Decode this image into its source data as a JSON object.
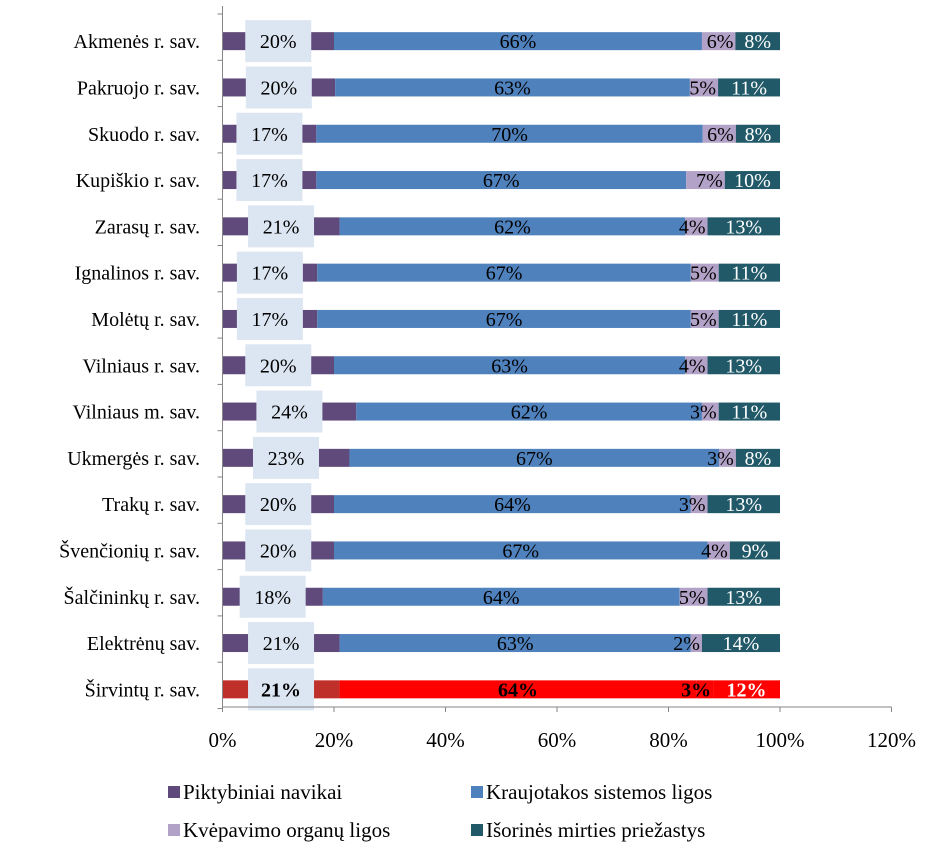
{
  "chart_data": {
    "type": "bar",
    "stacked": true,
    "orientation": "horizontal",
    "title": "",
    "xlabel": "",
    "ylabel": "",
    "xlim": [
      0,
      120
    ],
    "x_ticks": [
      "0%",
      "20%",
      "40%",
      "60%",
      "80%",
      "100%",
      "120%"
    ],
    "x_tick_values": [
      0,
      20,
      40,
      60,
      80,
      100,
      120
    ],
    "grid": false,
    "legend_position": "bottom",
    "categories": [
      "Akmenės r. sav.",
      "Pakruojo r. sav.",
      "Skuodo r. sav.",
      "Kupiškio r. sav.",
      "Zarasų r. sav.",
      "Ignalinos r. sav.",
      "Molėtų r. sav.",
      "Vilniaus r. sav.",
      "Vilniaus m. sav.",
      "Ukmergės r. sav.",
      "Trakų r. sav.",
      "Švenčionių r. sav.",
      "Šalčininkų r. sav.",
      "Elektrėnų sav.",
      "Širvintų r. sav."
    ],
    "series": [
      {
        "name": "Piktybiniai navikai",
        "color": "#604a7b",
        "labels": [
          "20%",
          "20%",
          "17%",
          "17%",
          "21%",
          "17%",
          "17%",
          "20%",
          "24%",
          "23%",
          "20%",
          "20%",
          "18%",
          "21%",
          "21%"
        ],
        "values": [
          20,
          20,
          17,
          17,
          21,
          17,
          17,
          20,
          24,
          23,
          20,
          20,
          18,
          21,
          21
        ]
      },
      {
        "name": "Kraujotakos sistemos ligos",
        "color": "#4f81bd",
        "labels": [
          "66%",
          "63%",
          "70%",
          "67%",
          "62%",
          "67%",
          "67%",
          "63%",
          "62%",
          "67%",
          "64%",
          "67%",
          "64%",
          "63%",
          "64%"
        ],
        "values": [
          66,
          63,
          70,
          67,
          62,
          67,
          67,
          63,
          62,
          67,
          64,
          67,
          64,
          63,
          64
        ]
      },
      {
        "name": "Kvėpavimo organų ligos",
        "color": "#b3a2c7",
        "labels": [
          "6%",
          "5%",
          "6%",
          "7%",
          "4%",
          "5%",
          "5%",
          "4%",
          "3%",
          "3%",
          "3%",
          "4%",
          "5%",
          "2%",
          "3%"
        ],
        "values": [
          6,
          5,
          6,
          7,
          4,
          5,
          5,
          4,
          3,
          3,
          3,
          4,
          5,
          2,
          3
        ]
      },
      {
        "name": "Išorinės mirties priežastys",
        "color": "#215968",
        "labels": [
          "8%",
          "11%",
          "8%",
          "10%",
          "13%",
          "11%",
          "11%",
          "13%",
          "11%",
          "8%",
          "13%",
          "9%",
          "13%",
          "14%",
          "12%"
        ],
        "values": [
          8,
          11,
          8,
          10,
          13,
          11,
          11,
          13,
          11,
          8,
          13,
          9,
          13,
          14,
          12
        ]
      }
    ],
    "highlight": {
      "category": "Širvintų r. sav.",
      "colors": [
        "#c0302a",
        "#ff0000",
        "#ff0000",
        "#ff0000"
      ]
    },
    "label_box_color": "#dce6f2"
  },
  "legend": [
    {
      "label": "Piktybiniai navikai",
      "color": "#604a7b"
    },
    {
      "label": "Kraujotakos sistemos ligos",
      "color": "#4f81bd"
    },
    {
      "label": "Kvėpavimo organų ligos",
      "color": "#b3a2c7"
    },
    {
      "label": "Išorinės mirties priežastys",
      "color": "#215968"
    }
  ]
}
